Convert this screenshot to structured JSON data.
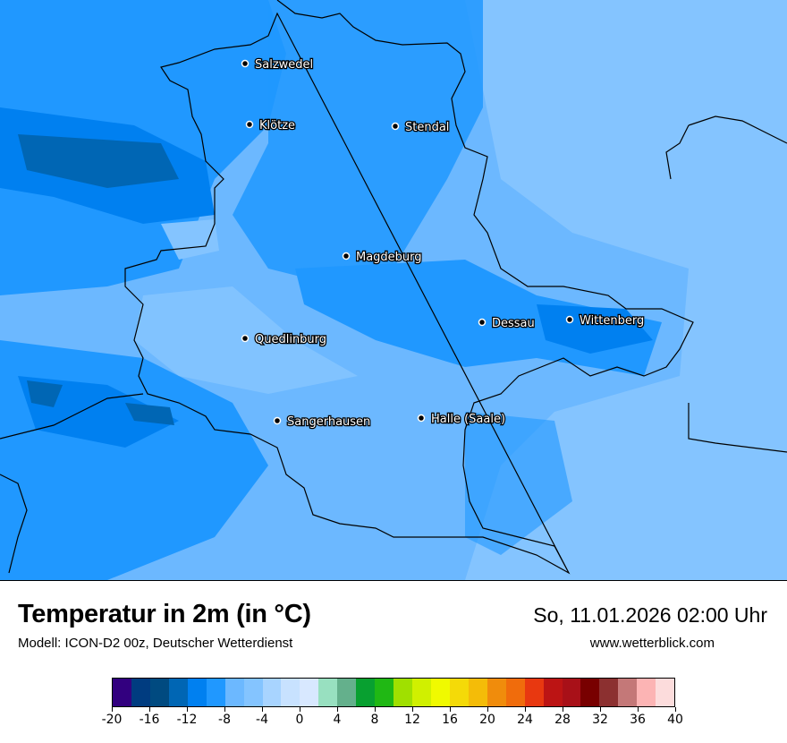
{
  "header": {
    "title": "Temperatur in 2m (in °C)",
    "subtitle": "Modell: ICON-D2 00z, Deutscher Wetterdienst",
    "datetime": "So, 11.01.2026 02:00 Uhr",
    "website": "www.wetterblick.com"
  },
  "map": {
    "cities": [
      {
        "name": "Salzwedel"
      },
      {
        "name": "Klötze"
      },
      {
        "name": "Stendal"
      },
      {
        "name": "Magdeburg"
      },
      {
        "name": "Dessau"
      },
      {
        "name": "Wittenberg"
      },
      {
        "name": "Quedlinburg"
      },
      {
        "name": "Sangerhausen"
      },
      {
        "name": "Halle (Saale)"
      }
    ]
  },
  "legend": {
    "min": -20,
    "max": 40,
    "step": 2,
    "tick_labels": [
      "-20",
      "-16",
      "-12",
      "-8",
      "-4",
      "0",
      "4",
      "8",
      "12",
      "16",
      "20",
      "24",
      "28",
      "32",
      "36",
      "40"
    ],
    "colors": [
      "#32007f",
      "#003c80",
      "#004a80",
      "#0066b4",
      "#0080f0",
      "#2098ff",
      "#6cb8ff",
      "#84c4ff",
      "#a8d4ff",
      "#c8e2ff",
      "#d8e8ff",
      "#98e0c0",
      "#64b08c",
      "#08a030",
      "#20b814",
      "#a0e000",
      "#d0f000",
      "#f0fa00",
      "#f4da08",
      "#f4bc08",
      "#f08c0c",
      "#f06c0c",
      "#e83810",
      "#bc1414",
      "#a81018",
      "#780000",
      "#8c3030",
      "#c47878",
      "#fcb4b4",
      "#fcdcdc"
    ]
  }
}
